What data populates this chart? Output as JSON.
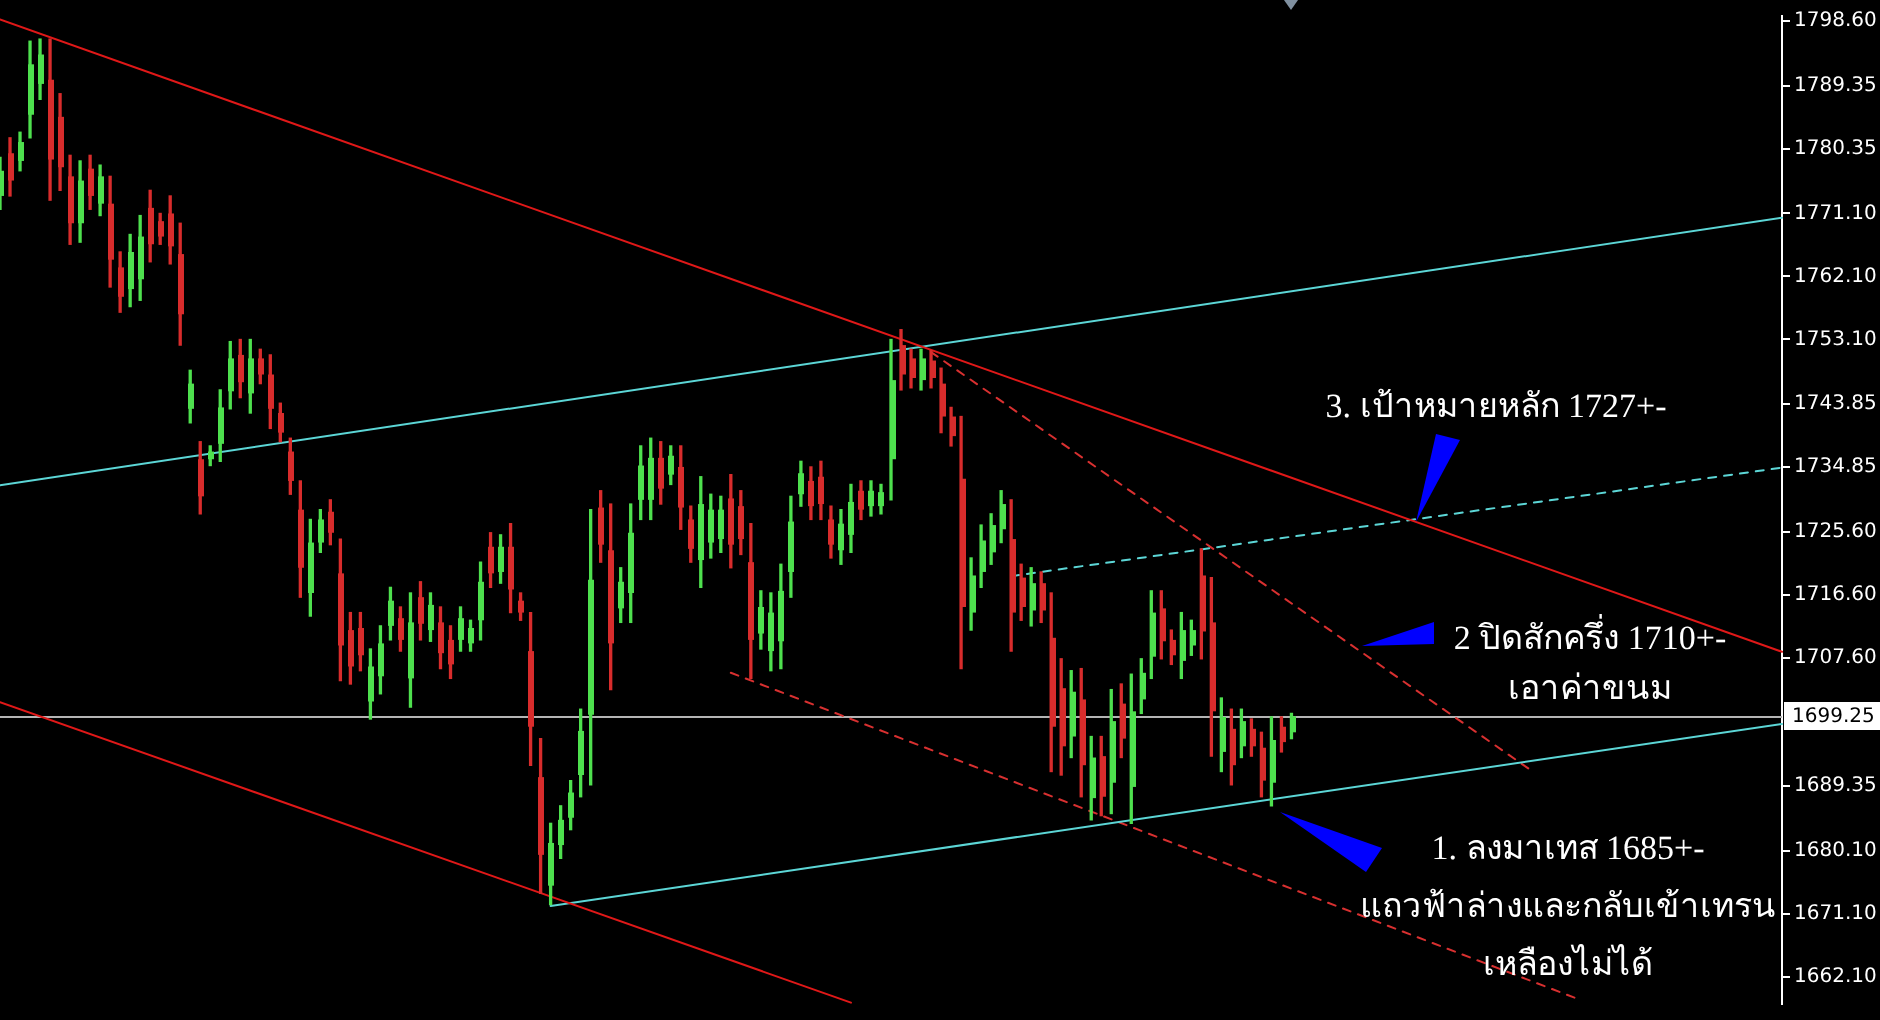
{
  "chart_data": {
    "type": "candlestick",
    "categories": [
      null,
      null,
      null,
      null,
      null,
      null,
      null,
      null,
      null,
      null,
      null,
      null,
      null,
      null,
      null,
      null,
      null,
      null,
      null,
      null,
      null,
      null,
      null,
      null,
      null,
      null,
      null,
      null,
      null,
      null,
      null,
      null,
      null,
      null,
      null,
      null,
      null,
      null,
      null,
      null,
      null,
      null,
      null,
      null,
      null,
      null,
      null,
      null,
      null,
      null,
      null,
      null,
      null,
      null,
      null,
      null,
      null,
      null,
      null,
      null,
      null,
      null,
      null,
      null,
      null,
      null,
      null,
      null,
      null,
      null,
      null,
      null,
      null,
      null,
      null,
      null,
      null,
      null,
      null,
      null,
      null,
      null,
      null,
      null,
      null,
      null,
      null,
      null,
      null,
      null,
      null,
      null,
      null,
      null,
      null,
      null,
      null,
      null,
      null,
      null,
      null,
      null,
      null,
      null,
      null,
      null,
      null,
      null,
      null,
      null,
      null,
      null,
      null,
      null,
      null,
      null,
      null,
      null,
      null,
      null,
      null,
      null,
      null,
      null,
      null,
      null,
      null,
      null,
      null,
      null,
      null,
      null,
      null,
      null,
      null,
      null,
      null,
      null,
      null,
      null,
      null,
      null,
      null,
      null,
      null,
      null,
      null,
      null,
      null,
      null,
      null,
      null,
      null,
      null,
      null,
      null,
      null,
      null,
      null,
      null,
      null,
      null,
      null,
      null,
      null,
      null,
      null,
      null,
      null,
      null,
      null,
      null,
      null,
      null,
      null,
      null,
      null,
      null,
      null
    ],
    "ohlc": [
      [
        1773.6,
        1779.1,
        1771.7,
        1777.2
      ],
      [
        1779.7,
        1781.9,
        1773.6,
        1775.8
      ],
      [
        1778.6,
        1782.7,
        1777.2,
        1781.3
      ],
      [
        1785.2,
        1795.7,
        1781.9,
        1792.4
      ],
      [
        1789.6,
        1796.0,
        1787.4,
        1793.8
      ],
      [
        1790.2,
        1796.0,
        1773.0,
        1778.8
      ],
      [
        1784.9,
        1788.2,
        1774.4,
        1777.7
      ],
      [
        1776.4,
        1779.4,
        1766.7,
        1769.7
      ],
      [
        1769.7,
        1778.6,
        1767.0,
        1775.8
      ],
      [
        1777.5,
        1779.4,
        1771.7,
        1773.6
      ],
      [
        1772.5,
        1778.0,
        1770.8,
        1776.4
      ],
      [
        1772.5,
        1776.4,
        1760.6,
        1764.5
      ],
      [
        1763.4,
        1765.6,
        1757.0,
        1759.2
      ],
      [
        1760.3,
        1768.1,
        1757.8,
        1765.6
      ],
      [
        1761.7,
        1770.8,
        1758.7,
        1767.8
      ],
      [
        1771.9,
        1774.4,
        1764.2,
        1766.7
      ],
      [
        1770.0,
        1771.1,
        1766.7,
        1767.8
      ],
      [
        1771.1,
        1773.6,
        1763.9,
        1766.4
      ],
      [
        1765.3,
        1769.7,
        1752.3,
        1756.7
      ],
      [
        1743.2,
        1748.7,
        1741.2,
        1746.8
      ],
      [
        1736.0,
        1738.5,
        1728.2,
        1730.7
      ],
      [
        1736.0,
        1737.9,
        1735.1,
        1737.1
      ],
      [
        1738.2,
        1745.9,
        1735.7,
        1743.4
      ],
      [
        1745.7,
        1752.8,
        1743.2,
        1750.4
      ],
      [
        1750.9,
        1753.1,
        1744.8,
        1747.0
      ],
      [
        1745.4,
        1753.1,
        1742.6,
        1750.4
      ],
      [
        1750.4,
        1751.7,
        1746.8,
        1748.1
      ],
      [
        1748.1,
        1750.9,
        1740.4,
        1743.2
      ],
      [
        1742.6,
        1744.0,
        1738.5,
        1739.8
      ],
      [
        1737.1,
        1739.0,
        1731.0,
        1732.9
      ],
      [
        1728.8,
        1732.9,
        1716.3,
        1720.5
      ],
      [
        1716.9,
        1727.4,
        1713.6,
        1724.1
      ],
      [
        1724.1,
        1728.8,
        1722.7,
        1727.4
      ],
      [
        1728.5,
        1730.2,
        1723.8,
        1725.5
      ],
      [
        1719.7,
        1724.6,
        1704.4,
        1709.4
      ],
      [
        1711.6,
        1714.1,
        1703.9,
        1706.4
      ],
      [
        1711.9,
        1714.1,
        1705.8,
        1708.0
      ],
      [
        1701.4,
        1708.9,
        1698.9,
        1706.4
      ],
      [
        1705.0,
        1712.2,
        1702.5,
        1709.7
      ],
      [
        1712.2,
        1717.7,
        1710.2,
        1715.8
      ],
      [
        1713.3,
        1714.9,
        1708.6,
        1710.2
      ],
      [
        1704.7,
        1716.9,
        1700.6,
        1712.7
      ],
      [
        1716.3,
        1718.5,
        1710.2,
        1712.5
      ],
      [
        1711.6,
        1716.9,
        1710.0,
        1715.2
      ],
      [
        1712.7,
        1714.9,
        1706.1,
        1708.3
      ],
      [
        1710.2,
        1712.2,
        1704.7,
        1706.7
      ],
      [
        1710.2,
        1714.9,
        1708.6,
        1713.3
      ],
      [
        1709.7,
        1713.0,
        1708.6,
        1711.9
      ],
      [
        1713.0,
        1721.3,
        1710.2,
        1718.5
      ],
      [
        1723.5,
        1725.5,
        1717.7,
        1719.7
      ],
      [
        1719.9,
        1725.2,
        1718.3,
        1723.5
      ],
      [
        1723.5,
        1726.8,
        1714.1,
        1717.4
      ],
      [
        1715.8,
        1716.9,
        1713.0,
        1714.1
      ],
      [
        1708.6,
        1714.1,
        1692.3,
        1697.8
      ],
      [
        1690.6,
        1696.1,
        1674.0,
        1679.5
      ],
      [
        1675.1,
        1684.0,
        1672.4,
        1681.2
      ],
      [
        1680.9,
        1686.5,
        1679.0,
        1684.5
      ],
      [
        1684.8,
        1690.1,
        1683.1,
        1688.4
      ],
      [
        1690.9,
        1700.3,
        1687.8,
        1697.2
      ],
      [
        1699.5,
        1728.8,
        1689.5,
        1718.8
      ],
      [
        1729.1,
        1731.5,
        1721.3,
        1723.8
      ],
      [
        1723.0,
        1729.6,
        1703.1,
        1709.7
      ],
      [
        1714.7,
        1720.5,
        1712.7,
        1718.5
      ],
      [
        1716.9,
        1729.6,
        1712.7,
        1725.5
      ],
      [
        1730.2,
        1737.9,
        1727.4,
        1735.1
      ],
      [
        1730.2,
        1739.0,
        1727.4,
        1736.2
      ],
      [
        1736.2,
        1738.5,
        1729.6,
        1731.8
      ],
      [
        1733.8,
        1737.9,
        1732.4,
        1736.5
      ],
      [
        1734.9,
        1737.9,
        1726.0,
        1729.1
      ],
      [
        1727.4,
        1729.3,
        1721.3,
        1723.2
      ],
      [
        1721.6,
        1733.5,
        1717.7,
        1729.6
      ],
      [
        1724.1,
        1731.0,
        1721.9,
        1728.8
      ],
      [
        1724.6,
        1730.7,
        1722.7,
        1728.8
      ],
      [
        1730.4,
        1733.8,
        1720.5,
        1723.8
      ],
      [
        1729.3,
        1731.5,
        1722.4,
        1724.6
      ],
      [
        1721.3,
        1726.8,
        1704.7,
        1710.2
      ],
      [
        1711.1,
        1717.2,
        1708.9,
        1714.9
      ],
      [
        1708.6,
        1716.9,
        1705.8,
        1714.1
      ],
      [
        1710.0,
        1721.0,
        1706.1,
        1717.2
      ],
      [
        1719.9,
        1730.7,
        1716.3,
        1727.1
      ],
      [
        1731.0,
        1735.7,
        1729.3,
        1734.0
      ],
      [
        1732.9,
        1734.9,
        1727.4,
        1729.3
      ],
      [
        1733.5,
        1735.7,
        1727.4,
        1729.6
      ],
      [
        1727.4,
        1729.3,
        1721.9,
        1723.8
      ],
      [
        1723.0,
        1728.8,
        1721.0,
        1726.8
      ],
      [
        1725.2,
        1732.4,
        1722.7,
        1729.9
      ],
      [
        1731.5,
        1732.9,
        1727.4,
        1728.8
      ],
      [
        1729.3,
        1732.9,
        1727.9,
        1731.5
      ],
      [
        1729.3,
        1732.4,
        1728.2,
        1731.3
      ],
      [
        1736.0,
        1753.1,
        1730.2,
        1747.3
      ],
      [
        1752.3,
        1754.5,
        1745.9,
        1748.1
      ],
      [
        1750.4,
        1751.7,
        1746.2,
        1747.6
      ],
      [
        1747.3,
        1751.7,
        1745.9,
        1750.4
      ],
      [
        1750.1,
        1751.5,
        1746.2,
        1747.6
      ],
      [
        1746.8,
        1749.0,
        1739.8,
        1742.1
      ],
      [
        1742.1,
        1743.4,
        1737.9,
        1739.3
      ],
      [
        1733.2,
        1742.1,
        1706.1,
        1714.9
      ],
      [
        1714.1,
        1721.9,
        1711.6,
        1719.4
      ],
      [
        1719.9,
        1726.6,
        1717.7,
        1724.4
      ],
      [
        1722.7,
        1728.2,
        1721.0,
        1726.6
      ],
      [
        1726.0,
        1731.5,
        1724.1,
        1729.6
      ],
      [
        1724.6,
        1730.2,
        1708.6,
        1714.1
      ],
      [
        1719.1,
        1721.0,
        1713.0,
        1714.9
      ],
      [
        1714.4,
        1720.5,
        1712.2,
        1718.3
      ],
      [
        1718.3,
        1719.9,
        1712.7,
        1714.4
      ],
      [
        1710.5,
        1716.9,
        1691.4,
        1697.8
      ],
      [
        1703.3,
        1707.5,
        1690.9,
        1695.0
      ],
      [
        1696.4,
        1705.8,
        1693.4,
        1702.8
      ],
      [
        1701.7,
        1706.1,
        1687.8,
        1692.3
      ],
      [
        1687.6,
        1696.4,
        1684.5,
        1693.4
      ],
      [
        1693.6,
        1696.4,
        1685.1,
        1687.8
      ],
      [
        1689.8,
        1703.1,
        1685.4,
        1698.6
      ],
      [
        1701.1,
        1703.9,
        1693.4,
        1696.1
      ],
      [
        1689.2,
        1705.3,
        1684.0,
        1700.0
      ],
      [
        1701.7,
        1707.5,
        1699.7,
        1705.5
      ],
      [
        1707.8,
        1717.2,
        1704.7,
        1714.1
      ],
      [
        1714.7,
        1717.2,
        1707.5,
        1710.0
      ],
      [
        1710.2,
        1711.6,
        1706.7,
        1708.0
      ],
      [
        1707.2,
        1714.1,
        1704.7,
        1711.6
      ],
      [
        1709.4,
        1713.0,
        1708.0,
        1711.6
      ],
      [
        1719.4,
        1723.2,
        1707.5,
        1711.4
      ],
      [
        1712.7,
        1719.1,
        1693.6,
        1700.0
      ],
      [
        1694.2,
        1701.9,
        1691.4,
        1699.2
      ],
      [
        1697.5,
        1700.3,
        1689.5,
        1692.3
      ],
      [
        1695.0,
        1700.3,
        1693.4,
        1698.6
      ],
      [
        1697.5,
        1698.9,
        1693.6,
        1695.0
      ],
      [
        1694.8,
        1697.0,
        1687.8,
        1690.1
      ],
      [
        1689.8,
        1699.2,
        1686.5,
        1695.9
      ],
      [
        1697.8,
        1699.2,
        1694.2,
        1695.6
      ],
      [
        1697.0,
        1699.7,
        1696.1,
        1699.3
      ],
      null,
      null,
      null,
      null,
      null,
      null,
      null,
      null,
      null,
      null,
      null,
      null,
      null,
      null,
      null,
      null,
      null,
      null,
      null,
      null,
      null,
      null,
      null,
      null,
      null,
      null,
      null,
      null,
      null,
      null,
      null,
      null,
      null,
      null,
      null,
      null,
      null,
      null,
      null,
      null,
      null,
      null,
      null,
      null,
      null,
      null,
      null,
      null,
      null
    ],
    "colors": [
      "#4ee04e",
      "#d82c2c",
      "#4ee04e",
      "#4ee04e",
      "#4ee04e",
      "#d82c2c",
      "#d82c2c",
      "#d82c2c",
      "#4ee04e",
      "#d82c2c",
      "#4ee04e",
      "#d82c2c",
      "#d82c2c",
      "#4ee04e",
      "#4ee04e",
      "#d82c2c",
      "#d82c2c",
      "#d82c2c",
      "#d82c2c",
      "#4ee04e",
      "#d82c2c",
      "#4ee04e",
      "#4ee04e",
      "#4ee04e",
      "#d82c2c",
      "#4ee04e",
      "#d82c2c",
      "#d82c2c",
      "#d82c2c",
      "#d82c2c",
      "#d82c2c",
      "#4ee04e",
      "#4ee04e",
      "#d82c2c",
      "#d82c2c",
      "#d82c2c",
      "#d82c2c",
      "#4ee04e",
      "#4ee04e",
      "#4ee04e",
      "#d82c2c",
      "#4ee04e",
      "#d82c2c",
      "#4ee04e",
      "#d82c2c",
      "#d82c2c",
      "#4ee04e",
      "#4ee04e",
      "#4ee04e",
      "#d82c2c",
      "#4ee04e",
      "#d82c2c",
      "#d82c2c",
      "#d82c2c",
      "#d82c2c",
      "#4ee04e",
      "#4ee04e",
      "#4ee04e",
      "#4ee04e",
      "#4ee04e",
      "#d82c2c",
      "#d82c2c",
      "#4ee04e",
      "#4ee04e",
      "#4ee04e",
      "#4ee04e",
      "#d82c2c",
      "#4ee04e",
      "#d82c2c",
      "#d82c2c",
      "#4ee04e",
      "#4ee04e",
      "#4ee04e",
      "#d82c2c",
      "#d82c2c",
      "#d82c2c",
      "#4ee04e",
      "#4ee04e",
      "#4ee04e",
      "#4ee04e",
      "#4ee04e",
      "#d82c2c",
      "#d82c2c",
      "#d82c2c",
      "#4ee04e",
      "#4ee04e",
      "#d82c2c",
      "#4ee04e",
      "#4ee04e",
      "#4ee04e",
      "#d82c2c",
      "#d82c2c",
      "#4ee04e",
      "#d82c2c",
      "#d82c2c",
      "#d82c2c",
      "#d82c2c",
      "#4ee04e",
      "#4ee04e",
      "#4ee04e",
      "#4ee04e",
      "#d82c2c",
      "#d82c2c",
      "#4ee04e",
      "#d82c2c",
      "#d82c2c",
      "#d82c2c",
      "#4ee04e",
      "#d82c2c",
      "#4ee04e",
      "#d82c2c",
      "#4ee04e",
      "#d82c2c",
      "#4ee04e",
      "#4ee04e",
      "#4ee04e",
      "#d82c2c",
      "#d82c2c",
      "#4ee04e",
      "#4ee04e",
      "#d82c2c",
      "#d82c2c",
      "#4ee04e",
      "#d82c2c",
      "#4ee04e",
      "#d82c2c",
      "#d82c2c",
      "#4ee04e",
      "#d82c2c",
      "#4ee04e",
      null,
      null,
      null,
      null,
      null,
      null,
      null,
      null,
      null,
      null,
      null,
      null,
      null,
      null,
      null,
      null,
      null,
      null,
      null,
      null,
      null,
      null,
      null,
      null,
      null,
      null,
      null,
      null,
      null,
      null,
      null,
      null,
      null,
      null,
      null,
      null,
      null,
      null,
      null,
      null,
      null,
      null,
      null,
      null,
      null,
      null,
      null,
      null,
      null
    ],
    "series": [
      {
        "type": "line",
        "color": "#e01818",
        "values": [
          1798.8,
          null,
          null,
          null,
          null,
          null,
          null,
          null,
          null,
          null,
          null,
          null,
          null,
          null,
          null,
          null,
          null,
          null,
          null,
          null,
          null,
          null,
          null,
          null,
          null,
          null,
          null,
          null,
          null,
          null,
          null,
          null,
          null,
          null,
          null,
          null,
          null,
          null,
          null,
          null,
          null,
          null,
          null,
          null,
          null,
          null,
          null,
          null,
          null,
          null,
          null,
          null,
          null,
          null,
          null,
          null,
          null,
          null,
          null,
          null,
          null,
          null,
          null,
          null,
          null,
          null,
          null,
          null,
          null,
          null,
          null,
          null,
          null,
          null,
          null,
          null,
          null,
          null,
          null,
          null,
          null,
          null,
          null,
          null,
          null,
          null,
          null,
          null,
          null,
          null,
          null,
          null,
          null,
          null,
          null,
          null,
          null,
          null,
          null,
          null,
          null,
          null,
          null,
          null,
          null,
          null,
          null,
          null,
          null,
          null,
          null,
          null,
          null,
          null,
          null,
          null,
          null,
          null,
          null,
          null,
          null,
          null,
          null,
          null,
          null,
          null,
          null,
          null,
          null,
          null,
          null,
          null,
          null,
          null,
          null,
          null,
          null,
          null,
          null,
          null,
          null,
          null,
          null,
          null,
          null,
          null,
          null,
          null,
          null,
          null,
          null,
          null,
          null,
          null,
          null,
          null,
          null,
          null,
          null,
          null,
          null,
          null,
          null,
          null,
          null,
          null,
          null,
          null,
          null,
          null,
          null,
          null,
          null,
          null,
          null,
          null,
          null,
          null,
          1708.5
        ]
      },
      {
        "type": "line",
        "color": "#e01818",
        "values": [
          1701.3,
          null,
          null,
          null,
          null,
          null,
          null,
          null,
          null,
          null,
          null,
          null,
          null,
          null,
          null,
          null,
          null,
          null,
          null,
          null,
          null,
          null,
          null,
          null,
          null,
          null,
          null,
          null,
          null,
          null,
          null,
          null,
          null,
          null,
          null,
          null,
          null,
          null,
          null,
          null,
          null,
          null,
          null,
          null,
          null,
          null,
          null,
          null,
          null,
          null,
          null,
          null,
          null,
          null,
          null,
          null,
          null,
          null,
          null,
          null,
          null,
          null,
          null,
          null,
          null,
          null,
          null,
          null,
          null,
          null,
          null,
          null,
          null,
          null,
          null,
          null,
          null,
          null,
          null,
          null,
          null,
          null,
          null,
          null,
          null,
          1658.4,
          null,
          null,
          null,
          null,
          null,
          null,
          null,
          null,
          null,
          null,
          null,
          null,
          null,
          null,
          null,
          null,
          null,
          null,
          null,
          null,
          null,
          null,
          null,
          null,
          null,
          null,
          null,
          null,
          null,
          null,
          null,
          null,
          null,
          null,
          null,
          null,
          null,
          null,
          null,
          null,
          null,
          null,
          null,
          null,
          null,
          null,
          null,
          null,
          null,
          null,
          null,
          null,
          null,
          null,
          null,
          null,
          null,
          null,
          null,
          null,
          null,
          null,
          null,
          null,
          null,
          null,
          null,
          null,
          null,
          null,
          null,
          null,
          null,
          null,
          null,
          null,
          null,
          null,
          null,
          null,
          null,
          null,
          null,
          null,
          null,
          null,
          null,
          null,
          null,
          null,
          null,
          null,
          null
        ]
      },
      {
        "type": "line",
        "color": "#5cd6d6",
        "values": [
          1732.3,
          null,
          null,
          null,
          null,
          null,
          null,
          null,
          null,
          null,
          null,
          null,
          null,
          null,
          null,
          null,
          null,
          null,
          null,
          null,
          null,
          null,
          null,
          null,
          null,
          null,
          null,
          null,
          null,
          null,
          null,
          null,
          null,
          null,
          null,
          null,
          null,
          null,
          null,
          null,
          null,
          null,
          null,
          null,
          null,
          null,
          null,
          null,
          null,
          null,
          null,
          null,
          null,
          null,
          null,
          null,
          null,
          null,
          null,
          null,
          null,
          null,
          null,
          null,
          null,
          null,
          null,
          null,
          null,
          null,
          null,
          null,
          null,
          null,
          null,
          null,
          null,
          null,
          null,
          null,
          null,
          null,
          null,
          null,
          null,
          null,
          null,
          null,
          null,
          null,
          null,
          null,
          null,
          null,
          null,
          null,
          null,
          null,
          null,
          null,
          null,
          null,
          null,
          null,
          null,
          null,
          null,
          null,
          null,
          null,
          null,
          null,
          null,
          null,
          null,
          null,
          null,
          null,
          null,
          null,
          null,
          null,
          null,
          null,
          null,
          null,
          null,
          null,
          null,
          null,
          null,
          null,
          null,
          null,
          null,
          null,
          null,
          null,
          null,
          null,
          null,
          null,
          null,
          null,
          null,
          null,
          null,
          null,
          null,
          null,
          null,
          null,
          null,
          null,
          null,
          null,
          null,
          null,
          null,
          null,
          null,
          null,
          null,
          null,
          null,
          null,
          null,
          null,
          null,
          null,
          null,
          null,
          null,
          null,
          null,
          null,
          null,
          null,
          1770.5
        ]
      },
      {
        "type": "line",
        "color": "#5cd6d6",
        "values": [
          null,
          null,
          null,
          null,
          null,
          null,
          null,
          null,
          null,
          null,
          null,
          null,
          null,
          null,
          null,
          null,
          null,
          null,
          null,
          null,
          null,
          null,
          null,
          null,
          null,
          null,
          null,
          null,
          null,
          null,
          null,
          null,
          null,
          null,
          null,
          null,
          null,
          null,
          null,
          null,
          null,
          null,
          null,
          null,
          null,
          null,
          null,
          null,
          null,
          null,
          null,
          null,
          null,
          null,
          null,
          1672.2,
          null,
          null,
          null,
          null,
          null,
          null,
          null,
          null,
          null,
          null,
          null,
          null,
          null,
          null,
          null,
          null,
          null,
          null,
          null,
          null,
          null,
          null,
          null,
          null,
          null,
          null,
          null,
          null,
          null,
          null,
          null,
          null,
          null,
          null,
          null,
          null,
          null,
          null,
          null,
          null,
          null,
          null,
          null,
          null,
          null,
          null,
          null,
          null,
          null,
          null,
          null,
          null,
          null,
          null,
          null,
          null,
          null,
          null,
          null,
          null,
          null,
          null,
          null,
          null,
          null,
          null,
          null,
          null,
          null,
          null,
          null,
          null,
          null,
          null,
          null,
          null,
          null,
          null,
          null,
          null,
          null,
          null,
          null,
          null,
          null,
          null,
          null,
          null,
          null,
          null,
          null,
          null,
          null,
          null,
          null,
          null,
          null,
          null,
          null,
          null,
          null,
          null,
          null,
          null,
          null,
          null,
          null,
          null,
          null,
          null,
          null,
          null,
          null,
          null,
          null,
          null,
          null,
          null,
          null,
          null,
          null,
          null,
          1698.2
        ]
      },
      {
        "type": "line",
        "color": "#5cd6d6",
        "line_style": "dashed",
        "values": [
          null,
          null,
          null,
          null,
          null,
          null,
          null,
          null,
          null,
          null,
          null,
          null,
          null,
          null,
          null,
          null,
          null,
          null,
          null,
          null,
          null,
          null,
          null,
          null,
          null,
          null,
          null,
          null,
          null,
          null,
          null,
          null,
          null,
          null,
          null,
          null,
          null,
          null,
          null,
          null,
          null,
          null,
          null,
          null,
          null,
          null,
          null,
          null,
          null,
          null,
          null,
          null,
          null,
          null,
          null,
          null,
          null,
          null,
          null,
          null,
          null,
          null,
          null,
          null,
          null,
          null,
          null,
          null,
          null,
          null,
          null,
          null,
          null,
          null,
          null,
          null,
          null,
          null,
          null,
          null,
          null,
          null,
          null,
          null,
          null,
          null,
          null,
          null,
          null,
          null,
          null,
          null,
          null,
          null,
          null,
          null,
          null,
          null,
          null,
          null,
          null,
          1719.3,
          null,
          null,
          null,
          null,
          null,
          null,
          null,
          null,
          null,
          null,
          null,
          null,
          null,
          null,
          null,
          null,
          null,
          null,
          null,
          null,
          null,
          null,
          null,
          null,
          null,
          null,
          null,
          null,
          null,
          null,
          null,
          null,
          null,
          null,
          null,
          null,
          null,
          null,
          null,
          null,
          null,
          null,
          null,
          null,
          null,
          null,
          null,
          null,
          null,
          null,
          null,
          null,
          null,
          null,
          null,
          null,
          null,
          null,
          null,
          null,
          null,
          null,
          null,
          null,
          null,
          null,
          null,
          null,
          null,
          null,
          null,
          null,
          null,
          null,
          null,
          null,
          1734.8
        ]
      },
      {
        "type": "line",
        "color": "#d83030",
        "line_style": "dashed",
        "values": [
          null,
          null,
          null,
          null,
          null,
          null,
          null,
          null,
          null,
          null,
          null,
          null,
          null,
          null,
          null,
          null,
          null,
          null,
          null,
          null,
          null,
          null,
          null,
          null,
          null,
          null,
          null,
          null,
          null,
          null,
          null,
          null,
          null,
          null,
          null,
          null,
          null,
          null,
          null,
          null,
          null,
          null,
          null,
          null,
          null,
          null,
          null,
          null,
          null,
          null,
          null,
          null,
          null,
          null,
          null,
          null,
          null,
          null,
          null,
          null,
          null,
          null,
          null,
          null,
          null,
          null,
          null,
          null,
          null,
          null,
          null,
          null,
          null,
          null,
          null,
          null,
          null,
          null,
          null,
          null,
          null,
          null,
          null,
          null,
          null,
          null,
          null,
          null,
          null,
          null,
          null,
          null,
          null,
          1751.3,
          null,
          null,
          null,
          null,
          null,
          null,
          null,
          null,
          null,
          null,
          null,
          null,
          null,
          null,
          null,
          null,
          null,
          null,
          null,
          null,
          null,
          null,
          null,
          null,
          null,
          null,
          null,
          null,
          null,
          null,
          null,
          null,
          null,
          null,
          null,
          null,
          null,
          null,
          null,
          null,
          null,
          null,
          null,
          null,
          null,
          null,
          null,
          null,
          null,
          null,
          null,
          null,
          null,
          null,
          null,
          null,
          null,
          null,
          null,
          1691.5,
          null,
          null,
          null,
          null,
          null,
          null,
          null,
          null,
          null,
          null,
          null,
          null,
          null,
          null,
          null,
          null,
          null,
          null,
          null,
          null,
          null,
          null,
          null,
          null,
          null
        ]
      },
      {
        "type": "line",
        "color": "#d83030",
        "line_style": "dashed",
        "values": [
          null,
          null,
          null,
          null,
          null,
          null,
          null,
          null,
          null,
          null,
          null,
          null,
          null,
          null,
          null,
          null,
          null,
          null,
          null,
          null,
          null,
          null,
          null,
          null,
          null,
          null,
          null,
          null,
          null,
          null,
          null,
          null,
          null,
          null,
          null,
          null,
          null,
          null,
          null,
          null,
          null,
          null,
          null,
          null,
          null,
          null,
          null,
          null,
          null,
          null,
          null,
          null,
          null,
          null,
          null,
          null,
          null,
          null,
          null,
          null,
          null,
          null,
          null,
          null,
          null,
          null,
          null,
          null,
          null,
          null,
          null,
          null,
          null,
          1705.5,
          null,
          null,
          null,
          null,
          null,
          null,
          null,
          null,
          null,
          null,
          null,
          null,
          null,
          null,
          null,
          null,
          null,
          null,
          null,
          null,
          null,
          null,
          null,
          null,
          null,
          null,
          null,
          null,
          null,
          null,
          null,
          null,
          null,
          null,
          null,
          null,
          null,
          null,
          null,
          null,
          null,
          null,
          null,
          null,
          null,
          null,
          null,
          null,
          null,
          null,
          null,
          null,
          null,
          null,
          null,
          null,
          null,
          null,
          null,
          null,
          null,
          null,
          null,
          null,
          null,
          null,
          null,
          null,
          null,
          null,
          null,
          null,
          null,
          null,
          null,
          null,
          null,
          null,
          null,
          null,
          null,
          null,
          null,
          null,
          1658.7,
          null,
          null,
          null,
          null,
          null,
          null,
          null,
          null,
          null,
          null,
          null,
          null,
          null,
          null,
          null,
          null,
          null,
          null,
          null,
          null
        ]
      }
    ],
    "ylim": [
      1658.2,
      1799.3
    ],
    "yticks": [
      {
        "value": 1798.6,
        "label": "1798.60"
      },
      1789.35,
      1780.35,
      {
        "value": 1771.1,
        "label": "1771.10"
      },
      {
        "value": 1762.1,
        "label": "1762.10"
      },
      {
        "value": 1753.1,
        "label": "1753.10"
      },
      1743.85,
      1734.85,
      {
        "value": 1725.6,
        "label": "1725.60"
      },
      {
        "value": 1716.6,
        "label": "1716.60"
      },
      {
        "value": 1707.6,
        "label": "1707.60"
      },
      1689.35,
      {
        "value": 1680.1,
        "label": "1680.10"
      },
      {
        "value": 1671.1,
        "label": "1671.10"
      },
      {
        "value": 1662.1,
        "label": "1662.10"
      }
    ],
    "ref_lines": [
      {
        "axis": "y",
        "value": 1699.25,
        "label": "1699.25",
        "color": "#b4b4b4"
      }
    ],
    "annotations": [
      "3. เป้าหมายหลัก 1727+-",
      "2 ปิดสักครึ่ง 1710+-\nเอาค่าขนม",
      "1. ลงมาเทส 1685+-\nแถวฟ้าล่างและกลับเข้าเทรน\nเหลืองไม่ได้"
    ],
    "tick_labels": "y",
    "grid": false
  }
}
